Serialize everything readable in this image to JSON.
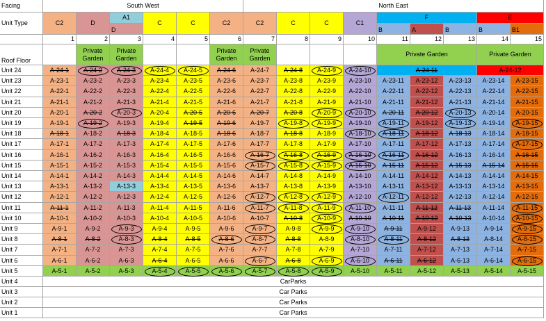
{
  "header": {
    "facing_label": "Facing",
    "southwest_label": "South West",
    "northeast_label": "North East",
    "unittype_label": "Unit Type",
    "a1_label": "A1",
    "f_label": "F",
    "e_label": "E",
    "rooffloor_label": "Roof Floor",
    "private_garden": "Private Garden"
  },
  "columns": [
    {
      "num": "1",
      "type": "C2",
      "color": "#f4b183"
    },
    {
      "num": "2",
      "type": "D",
      "color": "#d99594"
    },
    {
      "num": "3",
      "type": "D",
      "color": "#d99594"
    },
    {
      "num": "4",
      "type": "C",
      "color": "#ffff00"
    },
    {
      "num": "5",
      "type": "C",
      "color": "#ffff00"
    },
    {
      "num": "6",
      "type": "C2",
      "color": "#f4b183"
    },
    {
      "num": "7",
      "type": "C2",
      "color": "#f4b183"
    },
    {
      "num": "8",
      "type": "C",
      "color": "#ffff00"
    },
    {
      "num": "9",
      "type": "C",
      "color": "#ffff00"
    },
    {
      "num": "10",
      "type": "C1",
      "color": "#b4a7d6"
    },
    {
      "num": "11",
      "type": "B",
      "color": "#8db3e2"
    },
    {
      "num": "12",
      "type": "A",
      "color": "#c0504d"
    },
    {
      "num": "13",
      "type": "B",
      "color": "#8db3e2"
    },
    {
      "num": "14",
      "type": "B",
      "color": "#8db3e2"
    },
    {
      "num": "15",
      "type": "B1",
      "color": "#e46c0a"
    }
  ],
  "colors": {
    "a1_header": "#92cddc",
    "f_header": "#00b0f0",
    "e_header": "#ff0000",
    "garden": "#92d050",
    "unit5": "#92d050",
    "col3_unit13": "#92cddc"
  },
  "rows": [
    {
      "label": "Unit 24",
      "cells": [
        "A-24-1",
        "A-24-2",
        "A-24-3",
        "A-24-4",
        "A-24-5",
        "A-24-6",
        "A-24-7",
        "A-24-8",
        "A-24-9",
        "A-24-10",
        "A-24-11",
        "",
        "",
        "A-24-12",
        ""
      ]
    },
    {
      "label": "Unit 23",
      "cells": [
        "A-23-1",
        "A-23-2",
        "A-23-3",
        "A-23-4",
        "A-23-5",
        "A-23-6",
        "A-23-7",
        "A-23-8",
        "A-23-9",
        "A-23-10",
        "A-23-11",
        "A-23-12",
        "A-23-13",
        "A-23-14",
        "A-23-15"
      ]
    },
    {
      "label": "Unit 22",
      "cells": [
        "A-22-1",
        "A-22-2",
        "A-22-3",
        "A-22-4",
        "A-22-5",
        "A-22-6",
        "A-22-7",
        "A-22-8",
        "A-22-9",
        "A-22-10",
        "A-22-11",
        "A-22-12",
        "A-22-13",
        "A-22-14",
        "A-22-15"
      ]
    },
    {
      "label": "Unit 21",
      "cells": [
        "A-21-1",
        "A-21-2",
        "A-21-3",
        "A-21-4",
        "A-21-5",
        "A-21-6",
        "A-21-7",
        "A-21-8",
        "A-21-9",
        "A-21-10",
        "A-21-11",
        "A-21-12",
        "A-21-13",
        "A-21-14",
        "A-21-15"
      ]
    },
    {
      "label": "Unit 20",
      "cells": [
        "A-20-1",
        "A-20-2",
        "A-20-3",
        "A-20-4",
        "A-20-5",
        "A-20-6",
        "A-20-7",
        "A-20-8",
        "A-20-9",
        "A-20-10",
        "A-20-11",
        "A-20-12",
        "A-20-13",
        "A-20-14",
        "A-20-15"
      ]
    },
    {
      "label": "Unit 19",
      "cells": [
        "A-19-1",
        "A-19-2",
        "A-19-3",
        "A-19-4",
        "A-19-5",
        "A-19-6",
        "A-19-7",
        "A-19-8",
        "A-19-9",
        "A-19-10",
        "A-19-11",
        "A-19-12",
        "A-19-13",
        "A-19-14",
        "A-19-15"
      ]
    },
    {
      "label": "Unit 18",
      "cells": [
        "A-18-1",
        "A-18-2",
        "A-18-3",
        "A-18-4",
        "A-18-5",
        "A-18-6",
        "A-18-7",
        "A-18-8",
        "A-18-9",
        "A-18-10",
        "A-18-11",
        "A-18-12",
        "A-18-13",
        "A-18-14",
        "A-18-15"
      ]
    },
    {
      "label": "Unit 17",
      "cells": [
        "A-17-1",
        "A-17-2",
        "A-17-3",
        "A-17-4",
        "A-17-5",
        "A-17-6",
        "A-17-7",
        "A-17-8",
        "A-17-9",
        "A-17-10",
        "A-17-11",
        "A-17-12",
        "A-17-13",
        "A-17-14",
        "A-17-15"
      ]
    },
    {
      "label": "Unit 16",
      "cells": [
        "A-16-1",
        "A-16-2",
        "A-16-3",
        "A-16-4",
        "A-16-5",
        "A-16-6",
        "A-16-7",
        "A-16-8",
        "A-16-9",
        "A-16-10",
        "A-16-11",
        "A-16-12",
        "A-16-13",
        "A-16-14",
        "A-16-15"
      ]
    },
    {
      "label": "Unit 15",
      "cells": [
        "A-15-1",
        "A-15-2",
        "A-15-3",
        "A-15-4",
        "A-15-5",
        "A-15-6",
        "A-15-7",
        "A-15-8",
        "A-15-9",
        "A-15-10",
        "A-15-11",
        "A-15-12",
        "A-15-13",
        "A-15-14",
        "A-15-15"
      ]
    },
    {
      "label": "Unit 14",
      "cells": [
        "A-14-1",
        "A-14-2",
        "A-14-3",
        "A-14-4",
        "A-14-5",
        "A-14-6",
        "A-14-7",
        "A-14-8",
        "A-14-9",
        "A-14-10",
        "A-14-11",
        "A-14-12",
        "A-14-13",
        "A-14-14",
        "A-14-15"
      ]
    },
    {
      "label": "Unit 13",
      "cells": [
        "A-13-1",
        "A-13-2",
        "A-13-3",
        "A-13-4",
        "A-13-5",
        "A-13-6",
        "A-13-7",
        "A-13-8",
        "A-13-9",
        "A-13-10",
        "A-13-11",
        "A-13-12",
        "A-13-13",
        "A-13-14",
        "A-13-15"
      ]
    },
    {
      "label": "Unit 12",
      "cells": [
        "A-12-1",
        "A-12-2",
        "A-12-3",
        "A-12-4",
        "A-12-5",
        "A-12-6",
        "A-12-7",
        "A-12-8",
        "A-12-9",
        "A-12-10",
        "A-12-11",
        "A-12-12",
        "A-12-13",
        "A-12-14",
        "A-12-15"
      ]
    },
    {
      "label": "Unit 11",
      "cells": [
        "A-11-1",
        "A-11-2",
        "A-11-3",
        "A-11-4",
        "A-11-5",
        "A-11-6",
        "A-11-7",
        "A-11-8",
        "A-11-9",
        "A-11-10",
        "A-11-11",
        "A-11-12",
        "A-11-13",
        "A-11-14",
        "A-11-15"
      ]
    },
    {
      "label": "Unit 10",
      "cells": [
        "A-10-1",
        "A-10-2",
        "A-10-3",
        "A-10-4",
        "A-10-5",
        "A-10-6",
        "A-10-7",
        "A-10-8",
        "A-10-9",
        "A-10-10",
        "A-10-11",
        "A-10-12",
        "A-10-13",
        "A-10-14",
        "A-10-15"
      ]
    },
    {
      "label": "Unit 9",
      "cells": [
        "A-9-1",
        "A-9-2",
        "A-9-3",
        "A-9-4",
        "A-9-5",
        "A-9-6",
        "A-9-7",
        "A-9-8",
        "A-9-9",
        "A-9-10",
        "A-9-11",
        "A-9-12",
        "A-9-13",
        "A-9-14",
        "A-9-15"
      ]
    },
    {
      "label": "Unit 8",
      "cells": [
        "A-8-1",
        "A-8-2",
        "A-8-3",
        "A-8-4",
        "A-8-5",
        "A-8-6",
        "A-8-7",
        "A-8-8",
        "A-8-9",
        "A-8-10",
        "A-8-11",
        "A-8-12",
        "A-8-13",
        "A-8-14",
        "A-8-15"
      ]
    },
    {
      "label": "Unit 7",
      "cells": [
        "A-7-1",
        "A-7-2",
        "A-7-3",
        "A-7-4",
        "A-7-5",
        "A-7-6",
        "A-7-7",
        "A-7-8",
        "A-7-9",
        "A-7-10",
        "A-7-11",
        "A-7-12",
        "A-7-13",
        "A-7-14",
        "A-7-15"
      ]
    },
    {
      "label": "Unit 6",
      "cells": [
        "A-6-1",
        "A-6-2",
        "A-6-3",
        "A-6-4",
        "A-6-5",
        "A-6-6",
        "A-6-7",
        "A-6-8",
        "A-6-9",
        "A-6-10",
        "A-6-11",
        "A-6-12",
        "A-6-13",
        "A-6-14",
        "A-6-15"
      ]
    },
    {
      "label": "Unit 5",
      "cells": [
        "A-5-1",
        "A-5-2",
        "A-5-3",
        "A-5-4",
        "A-5-5",
        "A-5-6",
        "A-5-7",
        "A-5-8",
        "A-5-9",
        "A-5-10",
        "A-5-11",
        "A-5-12",
        "A-5-13",
        "A-5-14",
        "A-5-15"
      ]
    }
  ],
  "carpark_rows": [
    {
      "label": "Unit 4",
      "text": "CarParks"
    },
    {
      "label": "Unit 3",
      "text": "Car Parks"
    },
    {
      "label": "Unit 2",
      "text": "Car Parks"
    },
    {
      "label": "Unit 1",
      "text": "Car Parks"
    }
  ],
  "strikes": {
    "24": [
      1,
      2,
      3,
      6,
      8,
      11
    ],
    "20": [
      2,
      5,
      6,
      7,
      8,
      11,
      12
    ],
    "19": [
      2,
      5,
      6
    ],
    "18": [
      1,
      3,
      6,
      8,
      11,
      12,
      13
    ],
    "16": [
      7,
      8,
      9,
      10,
      11,
      12,
      15
    ],
    "15": [
      10,
      11,
      12,
      13,
      14,
      15
    ],
    "11": [
      1,
      12,
      13
    ],
    "10": [
      8,
      10,
      11,
      12,
      13
    ],
    "9": [
      11
    ],
    "8": [
      1,
      2,
      4,
      5,
      6,
      8,
      11,
      12,
      13
    ],
    "6": [
      4,
      8,
      11,
      12
    ]
  },
  "circles": {
    "24": [
      2,
      3,
      4,
      5,
      9,
      10
    ],
    "20": [
      3,
      9,
      10,
      13
    ],
    "19": [
      2,
      8,
      9,
      11,
      13,
      15
    ],
    "18": [
      10,
      11
    ],
    "17": [
      15
    ],
    "16": [
      7,
      8,
      9,
      10,
      11
    ],
    "15": [
      7,
      8,
      9,
      10
    ],
    "12": [
      7,
      8,
      9,
      11
    ],
    "11": [
      7,
      8,
      9,
      10,
      15
    ],
    "10": [
      9,
      15
    ],
    "9": [
      3,
      7,
      9,
      10,
      15
    ],
    "8": [
      3,
      6,
      7,
      10,
      11,
      15
    ],
    "6": [
      7,
      9,
      10,
      15
    ],
    "5": [
      4,
      5,
      6,
      7,
      8,
      9
    ]
  }
}
